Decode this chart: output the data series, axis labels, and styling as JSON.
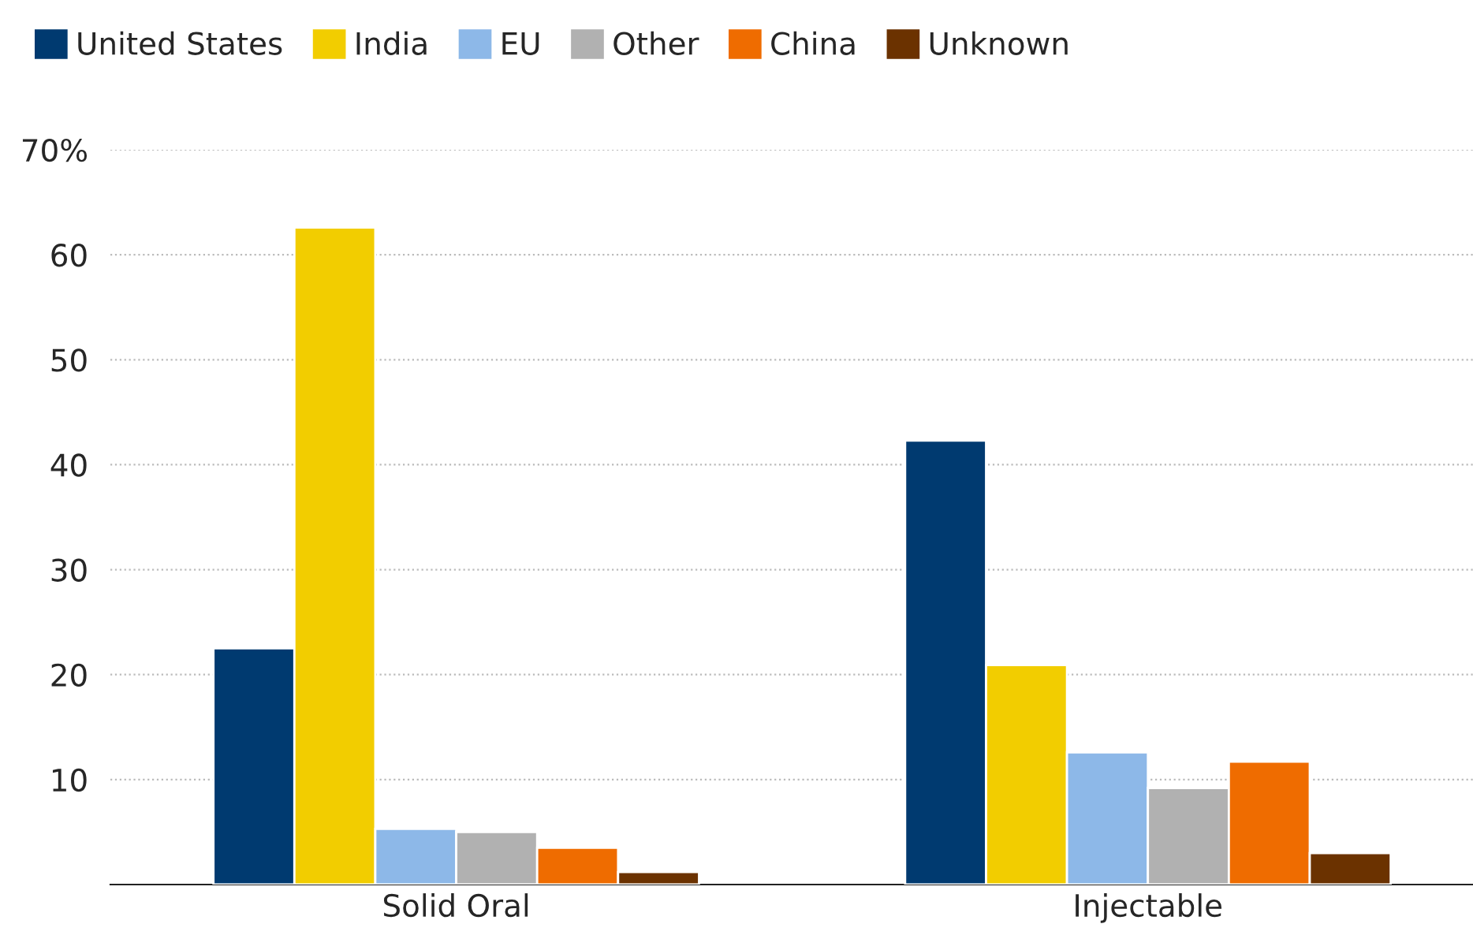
{
  "chart_data": {
    "type": "bar",
    "categories": [
      "Solid Oral",
      "Injectable"
    ],
    "series": [
      {
        "name": "United States",
        "color": "#003a70",
        "values": [
          22.5,
          42.3
        ]
      },
      {
        "name": "India",
        "color": "#f2cd00",
        "values": [
          62.6,
          20.9
        ]
      },
      {
        "name": "EU",
        "color": "#8db8e8",
        "values": [
          5.3,
          12.6
        ]
      },
      {
        "name": "Other",
        "color": "#b1b1b1",
        "values": [
          5.0,
          9.2
        ]
      },
      {
        "name": "China",
        "color": "#ef6c00",
        "values": [
          3.5,
          11.7
        ]
      },
      {
        "name": "Unknown",
        "color": "#6b3200",
        "values": [
          1.2,
          3.0
        ]
      }
    ],
    "ylim": [
      0,
      70
    ],
    "yticks": [
      10,
      20,
      30,
      40,
      50,
      60,
      {
        "value": 70,
        "label": "70%"
      }
    ],
    "grid": "y",
    "legend": "top left"
  }
}
